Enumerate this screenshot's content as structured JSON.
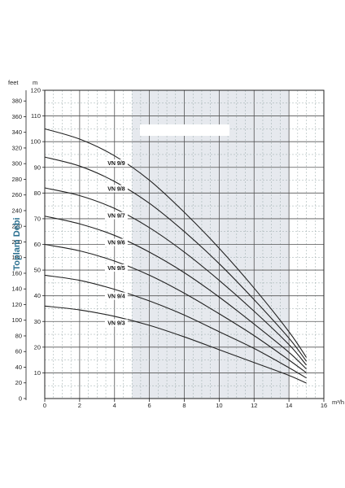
{
  "chart_data": {
    "type": "line",
    "ylabel": "Toplam Debi",
    "unit_left": "feet",
    "unit_right": "m",
    "unit_x": "m³/h",
    "xlim": [
      0,
      16
    ],
    "ylim": [
      0,
      120
    ],
    "x_ticks": [
      "0",
      "2",
      "4",
      "6",
      "8",
      "10",
      "12",
      "14",
      "16"
    ],
    "y_ticks_m": [
      "10",
      "20",
      "30",
      "40",
      "50",
      "60",
      "70",
      "80",
      "90",
      "100",
      "110",
      "120"
    ],
    "y_ticks_feet": [
      "0",
      "20",
      "40",
      "60",
      "80",
      "100",
      "120",
      "140",
      "160",
      "180",
      "200",
      "220",
      "240",
      "260",
      "280",
      "300",
      "320",
      "340",
      "360",
      "380"
    ],
    "shaded_x_range": [
      5,
      14
    ],
    "grid": true,
    "series": [
      {
        "name": "VN 9/3",
        "x": [
          0,
          2,
          4,
          6,
          8,
          10,
          12,
          14,
          15
        ],
        "values": [
          36,
          34.5,
          32,
          28.5,
          24,
          19,
          14,
          9,
          6
        ]
      },
      {
        "name": "VN 9/4",
        "x": [
          0,
          2,
          4,
          6,
          8,
          10,
          12,
          14,
          15
        ],
        "values": [
          48,
          46,
          42.5,
          38,
          32.5,
          26,
          19.5,
          12,
          8
        ]
      },
      {
        "name": "VN 9/5",
        "x": [
          0,
          2,
          4,
          6,
          8,
          10,
          12,
          14,
          15
        ],
        "values": [
          60,
          57.5,
          53.5,
          48,
          41,
          33,
          24.5,
          15,
          10
        ]
      },
      {
        "name": "VN 9/6",
        "x": [
          0,
          2,
          4,
          6,
          8,
          10,
          12,
          14,
          15
        ],
        "values": [
          71,
          68,
          63.5,
          57,
          49,
          39.5,
          29,
          18,
          11.5
        ]
      },
      {
        "name": "VN 9/7",
        "x": [
          0,
          2,
          4,
          6,
          8,
          10,
          12,
          14,
          15
        ],
        "values": [
          82,
          79,
          74,
          66.5,
          57,
          46,
          34,
          21,
          13
        ]
      },
      {
        "name": "VN 9/8",
        "x": [
          0,
          2,
          4,
          6,
          8,
          10,
          12,
          14,
          15
        ],
        "values": [
          94,
          90.5,
          84.5,
          76,
          65,
          52.5,
          38.5,
          23.5,
          14.5
        ]
      },
      {
        "name": "VN 9/9",
        "x": [
          0,
          2,
          4,
          6,
          8,
          10,
          12,
          14,
          15
        ],
        "values": [
          105,
          101,
          94.5,
          85,
          72.5,
          58.5,
          43,
          26,
          16
        ]
      }
    ],
    "label_x": 4.1
  }
}
